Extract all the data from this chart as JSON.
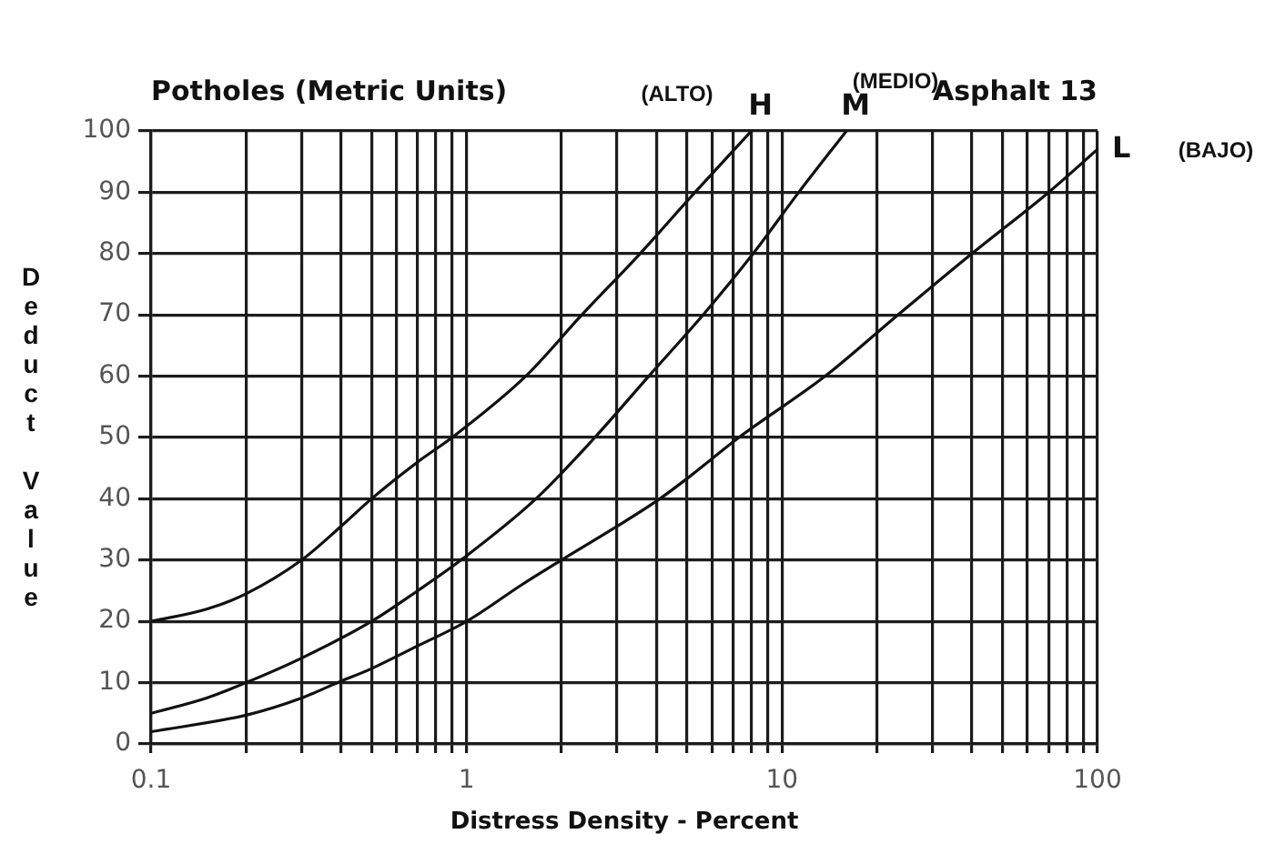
{
  "chart_data": {
    "type": "line",
    "title": "Potholes (Metric Units)",
    "subtitle": "Asphalt 13",
    "xlabel": "Distress Density - Percent",
    "ylabel": "Deduct Value",
    "annotations": [
      "(ALTO)",
      "(MEDIO)",
      "(BAJO)"
    ],
    "log": "x",
    "grid": true,
    "line_style": "solid",
    "xlim": [
      0.1,
      100
    ],
    "xticks": [
      0.1,
      {
        "value": 0.2,
        "label": null
      },
      {
        "value": 0.3,
        "label": null
      },
      {
        "value": 0.4,
        "label": null
      },
      {
        "value": 0.5,
        "label": null
      },
      {
        "value": 0.6,
        "label": null
      },
      {
        "value": 0.7,
        "label": null
      },
      {
        "value": 0.8,
        "label": null
      },
      {
        "value": 0.9,
        "label": null
      },
      1,
      {
        "value": 2,
        "label": null
      },
      {
        "value": 3,
        "label": null
      },
      {
        "value": 4,
        "label": null
      },
      {
        "value": 5,
        "label": null
      },
      {
        "value": 6,
        "label": null
      },
      {
        "value": 7,
        "label": null
      },
      {
        "value": 8,
        "label": null
      },
      {
        "value": 9,
        "label": null
      },
      10,
      {
        "value": 20,
        "label": null
      },
      {
        "value": 30,
        "label": null
      },
      {
        "value": 40,
        "label": null
      },
      {
        "value": 50,
        "label": null
      },
      {
        "value": 60,
        "label": null
      },
      {
        "value": 70,
        "label": null
      },
      {
        "value": 80,
        "label": null
      },
      {
        "value": 90,
        "label": null
      },
      100
    ],
    "ylim": [
      0,
      100
    ],
    "yticks": [
      0,
      10,
      20,
      30,
      40,
      50,
      60,
      70,
      80,
      90,
      100
    ],
    "series": [
      {
        "name": "H",
        "color": "#111111",
        "x": [
          0.1,
          0.15,
          0.2,
          0.3,
          0.4,
          0.5,
          0.7,
          0.9,
          1.54,
          2.32,
          3.55,
          5.3,
          8
        ],
        "values": [
          20,
          22,
          24.5,
          30,
          35.5,
          40,
          46,
          50,
          60,
          70,
          80,
          90,
          100
        ]
      },
      {
        "name": "M",
        "color": "#111111",
        "x": [
          0.1,
          0.15,
          0.2,
          0.3,
          0.5,
          0.7,
          0.96,
          1.66,
          2.55,
          3.78,
          5.62,
          8.1,
          11.3,
          16
        ],
        "values": [
          5,
          7.5,
          10,
          14,
          20,
          25,
          30,
          40,
          50,
          60,
          70,
          80,
          90,
          100
        ]
      },
      {
        "name": "L",
        "color": "#111111",
        "x": [
          0.1,
          0.2,
          0.3,
          0.39,
          0.5,
          0.7,
          1,
          1.5,
          2,
          3,
          4.1,
          5,
          7.3,
          13.7,
          23.3,
          40,
          70,
          100
        ],
        "values": [
          2,
          4.7,
          7.5,
          10,
          12.3,
          16,
          20,
          26,
          30,
          35.5,
          40,
          43.3,
          50,
          60,
          70,
          80,
          90,
          97
        ]
      }
    ]
  }
}
